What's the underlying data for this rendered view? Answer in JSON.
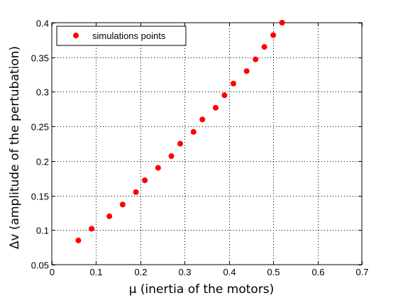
{
  "chart_data": {
    "type": "scatter",
    "xlabel": "μ (inertia of the motors)",
    "ylabel": "Δv (amplitude of the pertubation)",
    "xlim": [
      0,
      0.7
    ],
    "ylim": [
      0.05,
      0.4
    ],
    "xticks": [
      0,
      0.1,
      0.2,
      0.3,
      0.4,
      0.5,
      0.6,
      0.7
    ],
    "xtick_labels": [
      "0",
      "0.1",
      "0.2",
      "0.3",
      "0.4",
      "0.5",
      "0.6",
      "0.7"
    ],
    "yticks": [
      0.05,
      0.1,
      0.15,
      0.2,
      0.25,
      0.3,
      0.35,
      0.4
    ],
    "ytick_labels": [
      "0.05",
      "0.1",
      "0.15",
      "0.2",
      "0.25",
      "0.3",
      "0.35",
      "0.4"
    ],
    "grid": true,
    "legend_position": "top-left",
    "series": [
      {
        "name": "simulations points",
        "color": "#ff0000",
        "marker": "circle",
        "x": [
          0.06,
          0.09,
          0.13,
          0.16,
          0.19,
          0.21,
          0.24,
          0.27,
          0.29,
          0.32,
          0.34,
          0.37,
          0.39,
          0.41,
          0.44,
          0.46,
          0.48,
          0.5,
          0.52
        ],
        "y": [
          0.085,
          0.102,
          0.12,
          0.137,
          0.155,
          0.172,
          0.19,
          0.207,
          0.225,
          0.242,
          0.26,
          0.277,
          0.295,
          0.312,
          0.33,
          0.347,
          0.365,
          0.382,
          0.4
        ]
      }
    ]
  }
}
